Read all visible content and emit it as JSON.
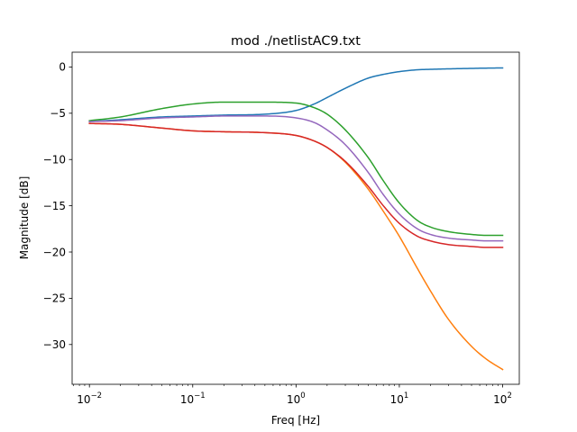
{
  "chart_data": {
    "type": "line",
    "title": "mod ./netlistAC9.txt",
    "xlabel": "Freq [Hz]",
    "ylabel": "Magnitude [dB]",
    "xscale": "log",
    "xlim": [
      0.0068,
      145
    ],
    "ylim": [
      -34.3,
      1.6
    ],
    "x_ticks": [
      {
        "value": 0.01,
        "base": "10",
        "exp": "−2"
      },
      {
        "value": 0.1,
        "base": "10",
        "exp": "−1"
      },
      {
        "value": 1,
        "base": "10",
        "exp": "0"
      },
      {
        "value": 10,
        "base": "10",
        "exp": "1"
      },
      {
        "value": 100,
        "base": "10",
        "exp": "2"
      }
    ],
    "y_ticks": [
      {
        "value": 0,
        "label": "0"
      },
      {
        "value": -5,
        "label": "−5"
      },
      {
        "value": -10,
        "label": "−10"
      },
      {
        "value": -15,
        "label": "−15"
      },
      {
        "value": -20,
        "label": "−20"
      },
      {
        "value": -25,
        "label": "−25"
      },
      {
        "value": -30,
        "label": "−30"
      }
    ],
    "grid": false,
    "legend": "none",
    "x": [
      0.01,
      0.02,
      0.05,
      0.1,
      0.2,
      0.5,
      1,
      1.5,
      2,
      3,
      5,
      7,
      10,
      15,
      20,
      30,
      50,
      70,
      100
    ],
    "series": [
      {
        "color": "#1f77b4",
        "values": [
          -5.9,
          -5.7,
          -5.4,
          -5.3,
          -5.2,
          -5.1,
          -4.7,
          -4.0,
          -3.3,
          -2.3,
          -1.2,
          -0.8,
          -0.5,
          -0.3,
          -0.25,
          -0.2,
          -0.15,
          -0.12,
          -0.1
        ]
      },
      {
        "color": "#ff7f0e",
        "values": [
          -6.1,
          -6.2,
          -6.6,
          -6.9,
          -7.0,
          -7.1,
          -7.4,
          -8.0,
          -8.7,
          -10.3,
          -13.2,
          -15.6,
          -18.3,
          -21.8,
          -24.2,
          -27.3,
          -30.2,
          -31.6,
          -32.7
        ]
      },
      {
        "color": "#2ca02c",
        "values": [
          -5.8,
          -5.4,
          -4.5,
          -4.0,
          -3.8,
          -3.8,
          -3.9,
          -4.4,
          -5.1,
          -6.8,
          -9.8,
          -12.3,
          -14.7,
          -16.6,
          -17.3,
          -17.8,
          -18.1,
          -18.2,
          -18.2
        ]
      },
      {
        "color": "#d62728",
        "values": [
          -6.1,
          -6.2,
          -6.6,
          -6.9,
          -7.0,
          -7.1,
          -7.4,
          -8.0,
          -8.7,
          -10.2,
          -12.9,
          -15.0,
          -16.9,
          -18.3,
          -18.8,
          -19.2,
          -19.4,
          -19.5,
          -19.5
        ]
      },
      {
        "color": "#9467bd",
        "values": [
          -5.9,
          -5.8,
          -5.5,
          -5.4,
          -5.3,
          -5.3,
          -5.5,
          -6.0,
          -6.8,
          -8.4,
          -11.4,
          -13.8,
          -15.9,
          -17.5,
          -18.1,
          -18.5,
          -18.7,
          -18.8,
          -18.8
        ]
      }
    ]
  }
}
